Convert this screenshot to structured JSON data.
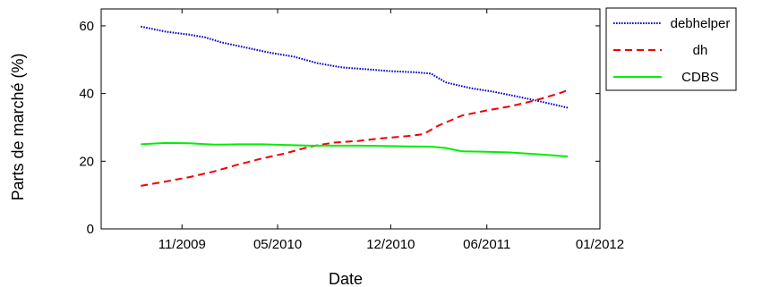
{
  "chart_data": {
    "type": "line",
    "title": "",
    "xlabel": "Date",
    "ylabel": "Parts de marché (%)",
    "x_ticks": [
      "2009-11-01",
      "2010-05-01",
      "2010-12-01",
      "2011-06-01",
      "2012-01-01"
    ],
    "x_tick_labels": [
      "11/2009",
      "05/2010",
      "12/2010",
      "06/2011",
      "01/2012"
    ],
    "xlim": [
      "2009-06-01",
      "2012-01-01"
    ],
    "ylim": [
      0,
      65
    ],
    "y_ticks": [
      0,
      20,
      40,
      60
    ],
    "y_tick_labels": [
      "0",
      "20",
      "40",
      "60"
    ],
    "grid": false,
    "legend": {
      "placement": "outside-right-top"
    },
    "series": [
      {
        "name": "debhelper",
        "color": "#0000cc",
        "style": "dotted",
        "x": [
          "2009-08-15",
          "2009-10-01",
          "2009-11-15",
          "2009-12-15",
          "2010-01-15",
          "2010-03-01",
          "2010-04-15",
          "2010-06-01",
          "2010-07-15",
          "2010-09-01",
          "2010-10-15",
          "2010-12-01",
          "2011-01-15",
          "2011-02-15",
          "2011-03-15",
          "2011-05-01",
          "2011-06-15",
          "2011-08-01",
          "2011-09-15",
          "2011-11-01"
        ],
        "y": [
          59.8,
          58.3,
          57.4,
          56.6,
          55.1,
          53.6,
          52.1,
          50.9,
          49.0,
          47.7,
          47.2,
          46.6,
          46.3,
          45.9,
          43.3,
          41.6,
          40.5,
          39.0,
          37.5,
          35.8
        ]
      },
      {
        "name": "dh",
        "color": "#ee0000",
        "style": "dashed",
        "x": [
          "2009-08-15",
          "2009-10-01",
          "2009-11-15",
          "2010-01-01",
          "2010-02-15",
          "2010-04-01",
          "2010-05-15",
          "2010-07-01",
          "2010-08-15",
          "2010-10-01",
          "2010-11-15",
          "2011-01-01",
          "2011-02-01",
          "2011-03-01",
          "2011-04-15",
          "2011-06-01",
          "2011-07-15",
          "2011-09-01",
          "2011-10-15",
          "2011-11-01"
        ],
        "y": [
          12.7,
          14.0,
          15.3,
          17.0,
          19.0,
          20.8,
          22.3,
          24.3,
          25.5,
          26.0,
          26.8,
          27.4,
          28.0,
          30.5,
          33.5,
          35.0,
          36.2,
          38.0,
          40.0,
          41.0
        ]
      },
      {
        "name": "CDBS",
        "color": "#00ee00",
        "style": "solid",
        "x": [
          "2009-08-15",
          "2009-10-01",
          "2009-11-15",
          "2010-01-01",
          "2010-02-15",
          "2010-04-01",
          "2010-05-15",
          "2010-07-01",
          "2010-08-15",
          "2010-10-01",
          "2010-11-15",
          "2011-01-01",
          "2011-02-15",
          "2011-03-15",
          "2011-04-15",
          "2011-06-01",
          "2011-07-15",
          "2011-09-01",
          "2011-10-15",
          "2011-11-01"
        ],
        "y": [
          25.0,
          25.4,
          25.3,
          24.9,
          25.0,
          25.0,
          24.8,
          24.6,
          24.6,
          24.6,
          24.5,
          24.4,
          24.3,
          23.9,
          22.9,
          22.8,
          22.6,
          22.1,
          21.6,
          21.4
        ]
      }
    ]
  }
}
